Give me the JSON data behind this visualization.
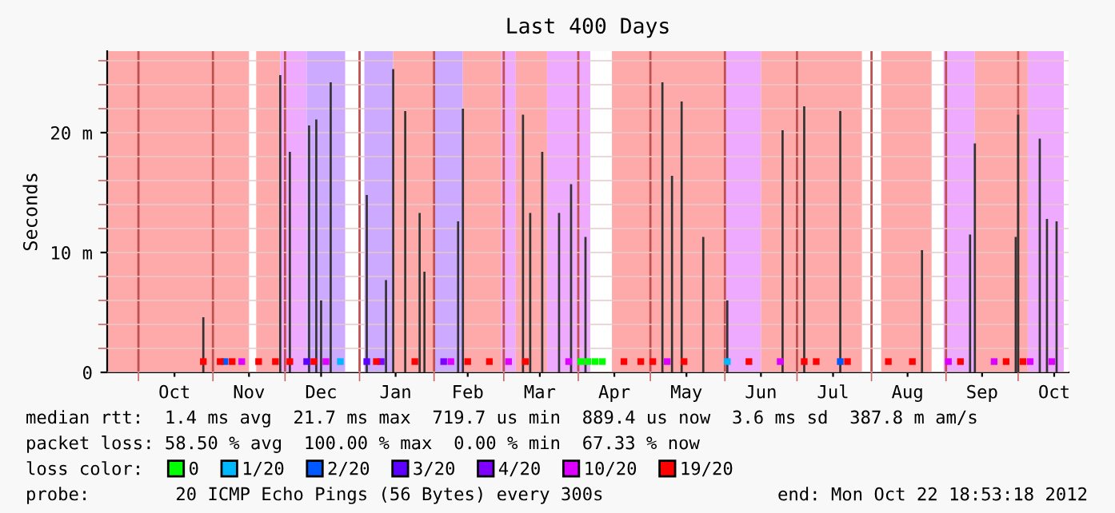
{
  "chart_data": {
    "type": "bar",
    "title": "Last 400 Days",
    "ylabel": "Seconds",
    "xlim": [
      "2011-09-18",
      "2012-10-22"
    ],
    "ylim": [
      0,
      26.8
    ],
    "yticks": [
      {
        "value": 0,
        "label": "0"
      },
      {
        "value": 2,
        "label": null
      },
      {
        "value": 4,
        "label": null
      },
      {
        "value": 6,
        "label": null
      },
      {
        "value": 8,
        "label": null
      },
      {
        "value": 10,
        "label": "10 m"
      },
      {
        "value": 12,
        "label": null
      },
      {
        "value": 14,
        "label": null
      },
      {
        "value": 16,
        "label": null
      },
      {
        "value": 18,
        "label": null
      },
      {
        "value": 20,
        "label": "20 m"
      },
      {
        "value": 22,
        "label": null
      },
      {
        "value": 24,
        "label": null
      },
      {
        "value": 26,
        "label": null
      }
    ],
    "xticks": [
      {
        "value": "2011-10-01",
        "label": null
      },
      {
        "value": "2011-10-16",
        "label": "Oct"
      },
      {
        "value": "2011-11-01",
        "label": null
      },
      {
        "value": "2011-11-16",
        "label": "Nov"
      },
      {
        "value": "2011-12-01",
        "label": null
      },
      {
        "value": "2011-12-16",
        "label": "Dec"
      },
      {
        "value": "2012-01-01",
        "label": null
      },
      {
        "value": "2012-01-16",
        "label": "Jan"
      },
      {
        "value": "2012-02-01",
        "label": null
      },
      {
        "value": "2012-02-15",
        "label": "Feb"
      },
      {
        "value": "2012-03-01",
        "label": null
      },
      {
        "value": "2012-03-16",
        "label": "Mar"
      },
      {
        "value": "2012-04-01",
        "label": null
      },
      {
        "value": "2012-04-16",
        "label": "Apr"
      },
      {
        "value": "2012-05-01",
        "label": null
      },
      {
        "value": "2012-05-16",
        "label": "May"
      },
      {
        "value": "2012-06-01",
        "label": null
      },
      {
        "value": "2012-06-16",
        "label": "Jun"
      },
      {
        "value": "2012-07-01",
        "label": null
      },
      {
        "value": "2012-07-16",
        "label": "Jul"
      },
      {
        "value": "2012-08-01",
        "label": null
      },
      {
        "value": "2012-08-16",
        "label": "Aug"
      },
      {
        "value": "2012-09-01",
        "label": null
      },
      {
        "value": "2012-09-16",
        "label": "Sep"
      },
      {
        "value": "2012-10-01",
        "label": null
      },
      {
        "value": "2012-10-16",
        "label": "Oct"
      }
    ],
    "grid": true,
    "legend": "bottom",
    "bands": [
      {
        "axis": "x",
        "from": "2011-09-18",
        "to": "2011-11-16",
        "color": "#ffaaaa"
      },
      {
        "axis": "x",
        "from": "2011-11-19",
        "to": "2011-11-29",
        "color": "#ffaaaa"
      },
      {
        "axis": "x",
        "from": "2011-11-29",
        "to": "2011-12-10",
        "color": "#eeaaff"
      },
      {
        "axis": "x",
        "from": "2011-12-10",
        "to": "2011-12-26",
        "color": "#ccaaff"
      },
      {
        "axis": "x",
        "from": "2012-01-03",
        "to": "2012-01-15",
        "color": "#ccaaff"
      },
      {
        "axis": "x",
        "from": "2012-01-15",
        "to": "2012-02-01",
        "color": "#ffaaaa"
      },
      {
        "axis": "x",
        "from": "2012-02-01",
        "to": "2012-02-13",
        "color": "#ccaaff"
      },
      {
        "axis": "x",
        "from": "2012-02-13",
        "to": "2012-02-29",
        "color": "#ffaaaa"
      },
      {
        "axis": "x",
        "from": "2012-02-29",
        "to": "2012-03-06",
        "color": "#eeaaff"
      },
      {
        "axis": "x",
        "from": "2012-03-06",
        "to": "2012-03-19",
        "color": "#ffaaaa"
      },
      {
        "axis": "x",
        "from": "2012-03-19",
        "to": "2012-04-06",
        "color": "#eeaaff"
      },
      {
        "axis": "x",
        "from": "2012-04-15",
        "to": "2012-06-01",
        "color": "#ffaaaa"
      },
      {
        "axis": "x",
        "from": "2012-06-01",
        "to": "2012-06-16",
        "color": "#eeaaff"
      },
      {
        "axis": "x",
        "from": "2012-06-16",
        "to": "2012-07-28",
        "color": "#ffaaaa"
      },
      {
        "axis": "x",
        "from": "2012-08-05",
        "to": "2012-08-26",
        "color": "#ffaaaa"
      },
      {
        "axis": "x",
        "from": "2012-08-31",
        "to": "2012-09-13",
        "color": "#eeaaff"
      },
      {
        "axis": "x",
        "from": "2012-09-13",
        "to": "2012-10-05",
        "color": "#ffaaaa"
      },
      {
        "axis": "x",
        "from": "2012-10-05",
        "to": "2012-10-20",
        "color": "#eeaaff"
      }
    ],
    "series": [
      {
        "color": "#333333",
        "x": [
          "2011-10-28",
          "2011-11-03",
          "2011-11-29",
          "2011-12-03",
          "2011-12-10",
          "2011-12-11",
          "2011-12-14",
          "2011-12-16",
          "2011-12-20",
          "2012-01-04",
          "2012-01-06",
          "2012-01-12",
          "2012-01-15",
          "2012-01-20",
          "2012-01-26",
          "2012-01-28",
          "2012-02-11",
          "2012-02-13",
          "2012-02-14",
          "2012-02-23",
          "2012-02-27",
          "2012-03-09",
          "2012-03-12",
          "2012-03-17",
          "2012-03-24",
          "2012-03-29",
          "2012-04-01",
          "2012-04-04",
          "2012-05-03",
          "2012-05-06",
          "2012-05-10",
          "2012-05-14",
          "2012-05-17",
          "2012-05-23",
          "2012-05-27",
          "2012-06-02",
          "2012-06-20",
          "2012-06-25",
          "2012-07-04",
          "2012-07-17",
          "2012-07-19",
          "2012-08-22",
          "2012-09-11",
          "2012-09-13",
          "2012-09-17",
          "2012-09-24",
          "2012-09-30",
          "2012-10-01",
          "2012-10-08",
          "2012-10-10",
          "2012-10-13",
          "2012-10-14",
          "2012-10-17"
        ],
        "values": [
          4.6,
          null,
          24.8,
          18.4,
          null,
          20.6,
          21.1,
          6,
          24.2,
          14.8,
          null,
          7.7,
          25.3,
          21.8,
          13.3,
          8.4,
          12.6,
          22,
          null,
          null,
          null,
          21.5,
          13.3,
          18.4,
          13.3,
          15.7,
          null,
          11.3,
          null,
          24.2,
          16.4,
          22.6,
          null,
          11.3,
          null,
          6,
          null,
          20.2,
          22.2,
          null,
          21.8,
          10.2,
          11.5,
          19.1,
          null,
          null,
          11.3,
          21.5,
          null,
          19.5,
          12.8,
          null,
          12.6
        ]
      },
      {
        "type": "scatter",
        "name": "0",
        "color": "#00ff00",
        "x": [
          "2012-04-02",
          "2012-04-05",
          "2012-04-08",
          "2012-04-11"
        ],
        "values": [
          0.9,
          0.9,
          0.9,
          0.9
        ]
      },
      {
        "type": "scatter",
        "name": "1/20",
        "color": "#00b8ff",
        "x": [
          "2011-12-24",
          "2012-06-02"
        ],
        "values": [
          0.9,
          0.9
        ]
      },
      {
        "type": "scatter",
        "name": "2/20",
        "color": "#0059ff",
        "x": [
          "2011-11-06",
          "2012-07-19"
        ],
        "values": [
          0.9,
          0.9
        ]
      },
      {
        "type": "scatter",
        "name": "3/20",
        "color": "#5e00ff",
        "x": [
          "2011-12-10",
          "2012-01-04"
        ],
        "values": [
          0.9,
          0.9
        ]
      },
      {
        "type": "scatter",
        "name": "4/20",
        "color": "#7e00ff",
        "x": [
          "2012-01-10",
          "2012-02-05"
        ],
        "values": [
          0.9,
          0.9
        ]
      },
      {
        "type": "scatter",
        "name": "10/20",
        "color": "#dd00ff",
        "x": [
          "2011-11-13",
          "2011-12-18",
          "2012-02-08",
          "2012-03-03",
          "2012-03-28",
          "2012-05-08",
          "2012-06-24",
          "2012-09-02",
          "2012-09-21",
          "2012-10-06",
          "2012-10-15"
        ],
        "values": [
          0.9,
          0.9,
          0.9,
          0.9,
          0.9,
          0.9,
          0.9,
          0.9,
          0.9,
          0.9,
          0.9
        ]
      },
      {
        "type": "scatter",
        "name": "19/20",
        "color": "#ff0000",
        "x": [
          "2011-10-28",
          "2011-11-04",
          "2011-11-09",
          "2011-11-20",
          "2011-11-27",
          "2011-12-03",
          "2011-12-13",
          "2012-01-08",
          "2012-01-24",
          "2012-02-15",
          "2012-02-24",
          "2012-03-10",
          "2012-04-20",
          "2012-04-27",
          "2012-05-02",
          "2012-05-15",
          "2012-06-11",
          "2012-07-04",
          "2012-07-09",
          "2012-07-22",
          "2012-08-08",
          "2012-08-18",
          "2012-09-07",
          "2012-09-26",
          "2012-10-03"
        ],
        "values": [
          0.9,
          0.9,
          0.9,
          0.9,
          0.9,
          0.9,
          0.9,
          0.9,
          0.9,
          0.9,
          0.9,
          0.9,
          0.9,
          0.9,
          0.9,
          0.9,
          0.9,
          0.9,
          0.9,
          0.9,
          0.9,
          0.9,
          0.9,
          0.9,
          0.9
        ]
      }
    ],
    "annotations": [
      "median rtt:  1.4 ms avg  21.7 ms max  719.7 us min  889.4 us now  3.6 ms sd  387.8 m am/s",
      "packet loss: 58.50 % avg  100.00 % max  0.00 % min  67.33 % now",
      "loss color:",
      "probe:        20 ICMP Echo Pings (56 Bytes) every 300s",
      "end: Mon Oct 22 18:53:18 2012"
    ]
  }
}
